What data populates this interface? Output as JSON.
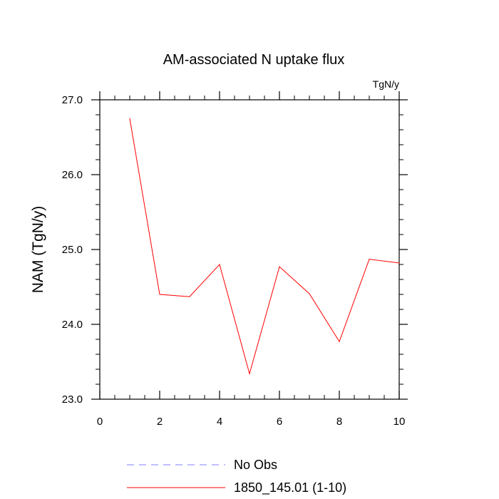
{
  "chart_data": {
    "type": "line",
    "title": "AM-associated N uptake flux",
    "units_label": "TgN/y",
    "xlabel": "",
    "ylabel": "NAM  (TgN/y)",
    "xlim": [
      0,
      10
    ],
    "ylim": [
      23.0,
      27.0
    ],
    "x_ticks": [
      0,
      2,
      4,
      6,
      8,
      10
    ],
    "x_tick_labels": [
      "0",
      "2",
      "4",
      "6",
      "8",
      "10"
    ],
    "y_ticks": [
      23.0,
      24.0,
      25.0,
      26.0,
      27.0
    ],
    "y_tick_labels": [
      "23.0",
      "24.0",
      "25.0",
      "26.0",
      "27.0"
    ],
    "grid": false,
    "legend_position": "bottom",
    "series": [
      {
        "name": "No Obs",
        "color": "#8080ff",
        "style": "dashed",
        "x": [],
        "y": []
      },
      {
        "name": "1850_145.01 (1-10)",
        "color": "#ff0000",
        "style": "solid",
        "x": [
          1,
          2,
          3,
          4,
          5,
          6,
          7,
          8,
          9,
          10
        ],
        "y": [
          26.75,
          24.4,
          24.37,
          24.8,
          23.34,
          24.77,
          24.41,
          23.77,
          24.87,
          24.82
        ]
      }
    ]
  }
}
